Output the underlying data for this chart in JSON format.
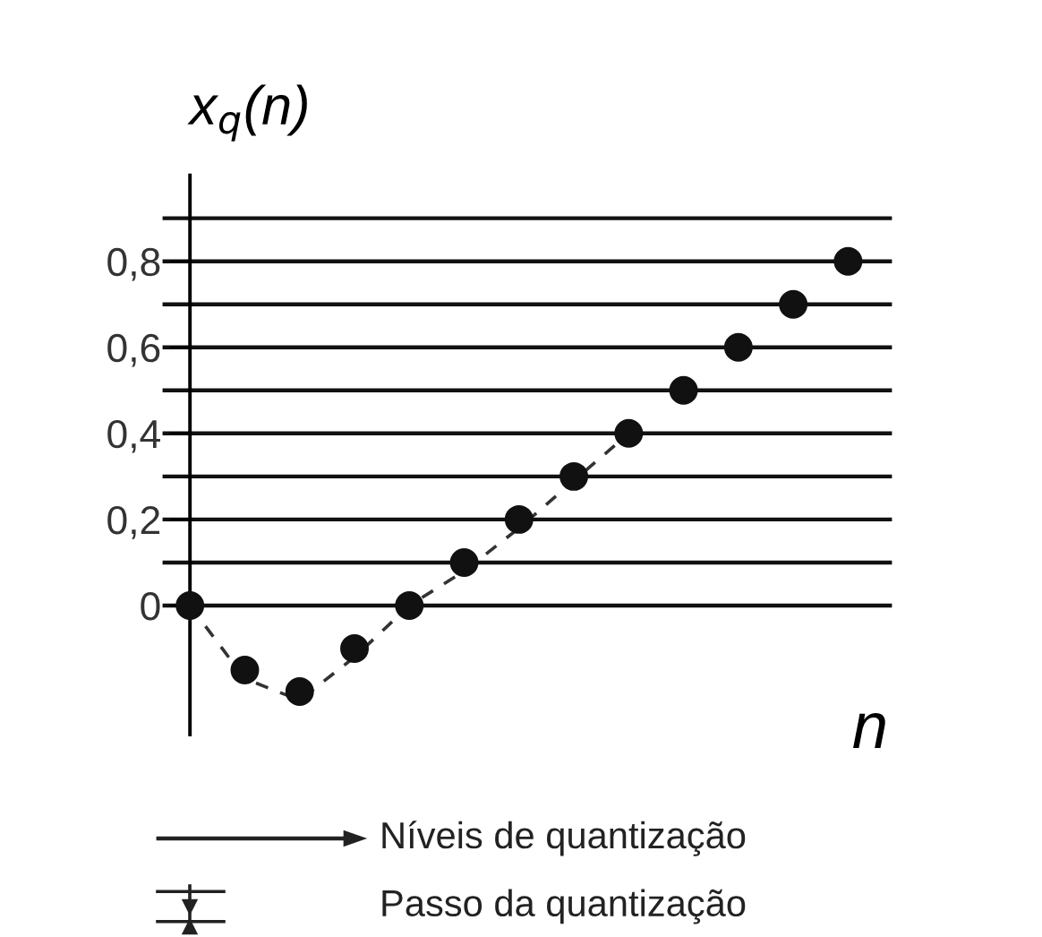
{
  "chart_data": {
    "type": "scatter",
    "ylabel": "x$_{q}$(n)",
    "xlabel": "n",
    "tick_labels": "y",
    "categories": [
      null,
      null,
      null,
      null,
      null,
      null,
      null,
      null,
      null,
      null,
      null,
      null,
      null
    ],
    "ylim": [
      -0.3,
      1.0
    ],
    "yticks": [
      {
        "value": 0,
        "label": "0"
      },
      {
        "value": 0.2,
        "label": "0,2"
      },
      {
        "value": 0.4,
        "label": "0,4"
      },
      {
        "value": 0.6,
        "label": "0,6"
      },
      {
        "value": 0.8,
        "label": "0,8"
      }
    ],
    "series": [
      {
        "color": "#111111",
        "marker": "circle",
        "values": [
          0,
          -0.15,
          -0.2,
          -0.1,
          0,
          0.1,
          0.2,
          0.3,
          0.4,
          0.5,
          0.6,
          0.7,
          0.8
        ]
      },
      {
        "type": "line",
        "color": "#333333",
        "line_style": "dashed",
        "marker": "none",
        "values": [
          0,
          -0.17,
          -0.22,
          -0.12,
          0,
          0.08,
          0.18,
          0.29,
          0.4,
          null,
          null,
          null,
          null
        ]
      }
    ],
    "ref_lines": [
      {
        "axis": "y",
        "value": 0,
        "color": "#111111"
      },
      {
        "axis": "y",
        "value": 0.1,
        "color": "#111111"
      },
      {
        "axis": "y",
        "value": 0.2,
        "color": "#111111"
      },
      {
        "axis": "y",
        "value": 0.3,
        "color": "#111111"
      },
      {
        "axis": "y",
        "value": 0.4,
        "color": "#111111"
      },
      {
        "axis": "y",
        "value": 0.5,
        "color": "#111111"
      },
      {
        "axis": "y",
        "value": 0.6,
        "color": "#111111"
      },
      {
        "axis": "y",
        "value": 0.7,
        "color": "#111111"
      },
      {
        "axis": "y",
        "value": 0.8,
        "color": "#111111"
      },
      {
        "axis": "y",
        "value": 0.9,
        "color": "#111111"
      }
    ],
    "annotations": [
      "Níveis de quantização",
      "Passo da quantização"
    ]
  }
}
